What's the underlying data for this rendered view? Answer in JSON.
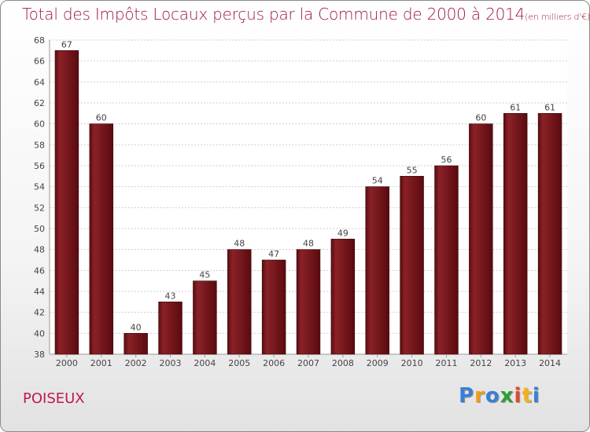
{
  "chart_data": {
    "type": "bar",
    "title": "Total des Impôts Locaux perçus par la Commune de 2000 à 2014",
    "subtitle": "(en milliers d'€)",
    "categories": [
      "2000",
      "2001",
      "2002",
      "2003",
      "2004",
      "2005",
      "2006",
      "2007",
      "2008",
      "2009",
      "2010",
      "2011",
      "2012",
      "2013",
      "2014"
    ],
    "values": [
      67,
      60,
      40,
      43,
      45,
      48,
      47,
      48,
      49,
      54,
      55,
      56,
      60,
      61,
      61
    ],
    "yticks": [
      "38",
      "40",
      "42",
      "44",
      "46",
      "48",
      "50",
      "52",
      "54",
      "56",
      "58",
      "60",
      "62",
      "64",
      "66",
      "68"
    ],
    "ylim": [
      38,
      68
    ],
    "xlabel": "",
    "ylabel": "",
    "grid": true,
    "bar_color": "#7a1518"
  },
  "commune": "POISEUX",
  "logo": {
    "letters": [
      "P",
      "r",
      "o",
      "x",
      "i",
      "t",
      "i"
    ],
    "colors": [
      "#3a7fd5",
      "#f29a1b",
      "#3a7fd5",
      "#2e9e3a",
      "#e04a2a",
      "#f2b21b",
      "#3a7fd5"
    ]
  }
}
